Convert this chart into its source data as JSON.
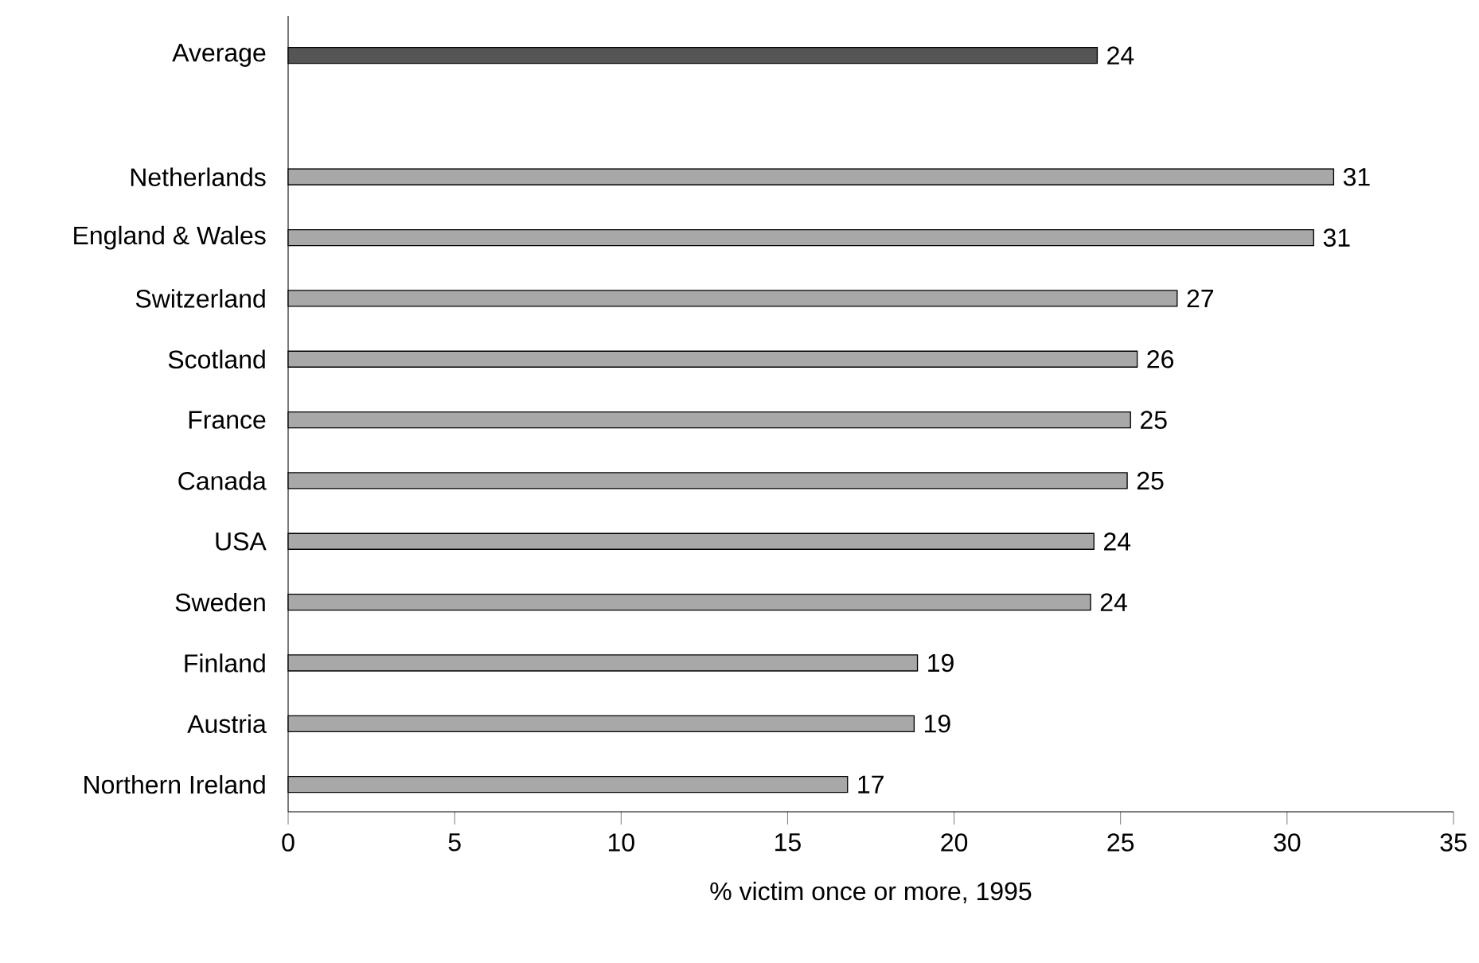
{
  "chart_data": {
    "type": "bar",
    "orientation": "horizontal",
    "xlabel": "% victim once or more, 1995",
    "categories": [
      "Average",
      null,
      "Netherlands",
      "England & Wales",
      "Switzerland",
      "Scotland",
      "France",
      "Canada",
      "USA",
      "Sweden",
      "Finland",
      "Austria",
      "Northern Ireland"
    ],
    "values": [
      24.3,
      null,
      31.4,
      30.8,
      26.7,
      25.5,
      25.3,
      25.2,
      24.2,
      24.1,
      18.9,
      18.8,
      16.8
    ],
    "value_labels": [
      "24",
      null,
      "31",
      "31",
      "27",
      "26",
      "25",
      "25",
      "24",
      "24",
      "19",
      "19",
      "17"
    ],
    "colors": [
      "#555555",
      null,
      "#a8a8a8",
      "#a8a8a8",
      "#a8a8a8",
      "#a8a8a8",
      "#a8a8a8",
      "#a8a8a8",
      "#a8a8a8",
      "#a8a8a8",
      "#a8a8a8",
      "#a8a8a8",
      "#a8a8a8"
    ],
    "xlim": [
      0,
      35
    ],
    "xticks": [
      0,
      5,
      10,
      15,
      20,
      25,
      30,
      35
    ],
    "grid": false
  }
}
